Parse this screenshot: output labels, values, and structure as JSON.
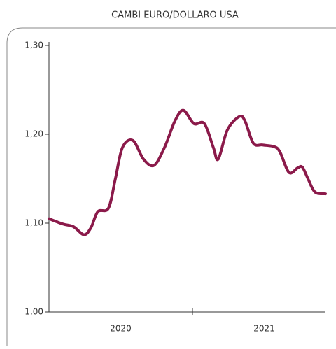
{
  "chart_data": {
    "type": "line",
    "title": "CAMBI EURO/DOLLARO USA",
    "x": [
      2020.0,
      2020.098,
      2020.171,
      2020.244,
      2020.293,
      2020.341,
      2020.415,
      2020.463,
      2020.512,
      2020.585,
      2020.659,
      2020.732,
      2020.805,
      2020.878,
      2020.937,
      2021.01,
      2021.083,
      2021.146,
      2021.18,
      2021.244,
      2021.327,
      2021.366,
      2021.424,
      2021.488,
      2021.571,
      2021.61,
      2021.673,
      2021.732,
      2021.766,
      2021.805,
      2021.854,
      2021.927
    ],
    "series": [
      {
        "color": "#8b1a4a",
        "values": [
          1.105,
          1.099,
          1.096,
          1.087,
          1.095,
          1.113,
          1.117,
          1.15,
          1.185,
          1.193,
          1.172,
          1.165,
          1.185,
          1.215,
          1.227,
          1.212,
          1.212,
          1.185,
          1.172,
          1.205,
          1.22,
          1.215,
          1.19,
          1.188,
          1.186,
          1.18,
          1.157,
          1.162,
          1.163,
          1.15,
          1.135,
          1.133
        ]
      }
    ],
    "xlim": [
      2020,
      2021.927
    ],
    "xticks": [
      {
        "value": 2020.5,
        "label": "2020"
      },
      {
        "value": 2021.5,
        "label": "2021"
      }
    ],
    "ylim": [
      1.0,
      1.3
    ],
    "yticks": [
      {
        "value": 1.0,
        "label": "1,00"
      },
      {
        "value": 1.1,
        "label": "1,10"
      },
      {
        "value": 1.2,
        "label": "1,20"
      },
      {
        "value": 1.3,
        "label": "1,30"
      }
    ]
  }
}
